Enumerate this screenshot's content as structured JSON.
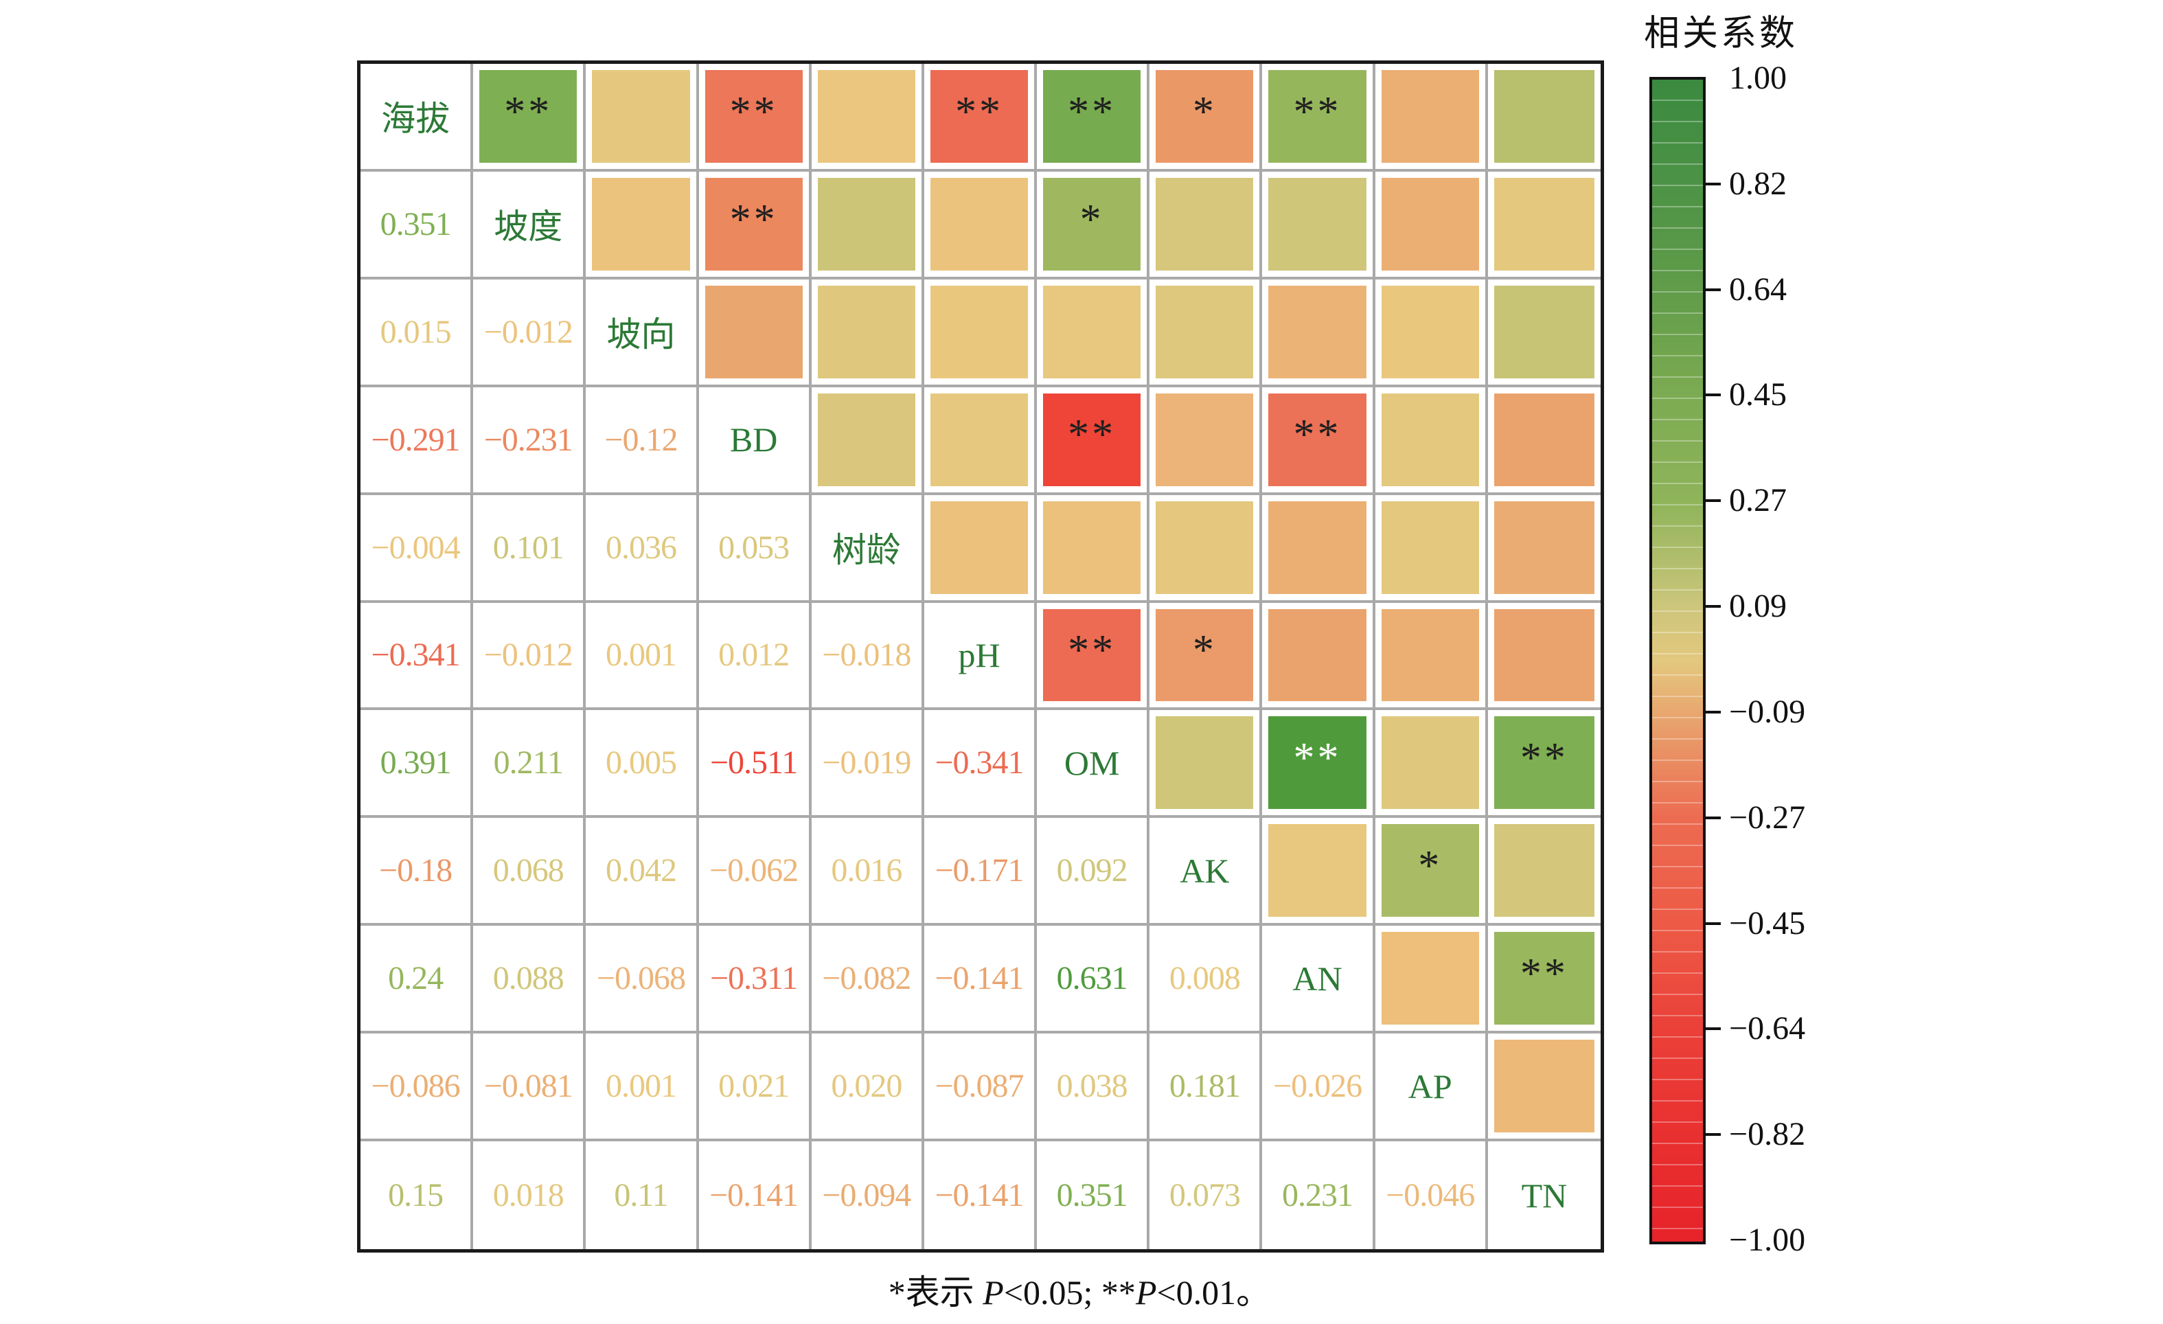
{
  "colorbar": {
    "title": "相关系数",
    "ticks": [
      "1.00",
      "0.82",
      "0.64",
      "0.45",
      "0.27",
      "0.09",
      "−0.09",
      "−0.27",
      "−0.45",
      "−0.64",
      "−0.82",
      "−1.00"
    ]
  },
  "matrix": {
    "variables": [
      "海拔",
      "坡度",
      "坡向",
      "BD",
      "树龄",
      "pH",
      "OM",
      "AK",
      "AN",
      "AP",
      "TN"
    ],
    "lower_display": [
      [],
      [
        "0.351"
      ],
      [
        "0.015",
        "−0.012"
      ],
      [
        "−0.291",
        "−0.231",
        "−0.12"
      ],
      [
        "−0.004",
        "0.101",
        "0.036",
        "0.053"
      ],
      [
        "−0.341",
        "−0.012",
        "0.001",
        "0.012",
        "−0.018"
      ],
      [
        "0.391",
        "0.211",
        "0.005",
        "−0.511",
        "−0.019",
        "−0.341"
      ],
      [
        "−0.18",
        "0.068",
        "0.042",
        "−0.062",
        "0.016",
        "−0.171",
        "0.092"
      ],
      [
        "0.24",
        "0.088",
        "−0.068",
        "−0.311",
        "−0.082",
        "−0.141",
        "0.631",
        "0.008"
      ],
      [
        "−0.086",
        "−0.081",
        "0.001",
        "0.021",
        "0.020",
        "−0.087",
        "0.038",
        "0.181",
        "−0.026"
      ],
      [
        "0.15",
        "0.018",
        "0.11",
        "−0.141",
        "−0.094",
        "−0.141",
        "0.351",
        "0.073",
        "0.231",
        "−0.046"
      ]
    ],
    "significance": {
      "0-1": "**",
      "0-3": "**",
      "0-5": "**",
      "0-6": "**",
      "0-7": "*",
      "0-8": "**",
      "1-3": "**",
      "1-6": "*",
      "3-6": "**",
      "3-8": "**",
      "5-6": "**",
      "5-7": "*",
      "6-8": "**",
      "6-10": "**",
      "7-9": "*",
      "8-10": "**"
    }
  },
  "caption": {
    "part1": "*表示 ",
    "p1": "P",
    "part2": "<0.05; **",
    "p2": "P",
    "part3": "<0.01。"
  },
  "colors": {
    "label_green": "#2c7936",
    "grid_line": "#a9a9a9",
    "outer_border": "#1a1a1a",
    "star_dark": "#1f1f1f",
    "star_light": "#ffffff",
    "cmap_stops": [
      [
        -1.0,
        229,
        33,
        42
      ],
      [
        -0.82,
        233,
        47,
        47
      ],
      [
        -0.64,
        234,
        64,
        55
      ],
      [
        -0.52,
        238,
        67,
        55
      ],
      [
        -0.4,
        237,
        95,
        72
      ],
      [
        -0.31,
        236,
        114,
        87
      ],
      [
        -0.23,
        236,
        136,
        94
      ],
      [
        -0.155,
        235,
        160,
        108
      ],
      [
        -0.1,
        234,
        170,
        113
      ],
      [
        -0.06,
        236,
        181,
        120
      ],
      [
        -0.03,
        237,
        190,
        123
      ],
      [
        -0.012,
        236,
        195,
        125
      ],
      [
        0.0,
        233,
        200,
        126
      ],
      [
        0.03,
        225,
        200,
        126
      ],
      [
        0.06,
        216,
        199,
        125
      ],
      [
        0.095,
        206,
        198,
        121
      ],
      [
        0.13,
        193,
        193,
        113
      ],
      [
        0.165,
        177,
        189,
        106
      ],
      [
        0.2,
        162,
        185,
        98
      ],
      [
        0.24,
        150,
        182,
        92
      ],
      [
        0.3,
        136,
        177,
        86
      ],
      [
        0.36,
        125,
        175,
        82
      ],
      [
        0.42,
        113,
        167,
        76
      ],
      [
        0.55,
        90,
        157,
        64
      ],
      [
        0.64,
        78,
        155,
        60
      ],
      [
        0.8,
        60,
        141,
        58
      ],
      [
        1.0,
        44,
        120,
        49
      ]
    ]
  },
  "chart_data": {
    "type": "heatmap",
    "title": "相关系数",
    "variables": [
      "海拔",
      "坡度",
      "坡向",
      "BD",
      "树龄",
      "pH",
      "OM",
      "AK",
      "AN",
      "AP",
      "TN"
    ],
    "lower_triangle": [
      [],
      [
        0.351
      ],
      [
        0.015,
        -0.012
      ],
      [
        -0.291,
        -0.231,
        -0.12
      ],
      [
        -0.004,
        0.101,
        0.036,
        0.053
      ],
      [
        -0.341,
        -0.012,
        0.001,
        0.012,
        -0.018
      ],
      [
        0.391,
        0.211,
        0.005,
        -0.511,
        -0.019,
        -0.341
      ],
      [
        -0.18,
        0.068,
        0.042,
        -0.062,
        0.016,
        -0.171,
        0.092
      ],
      [
        0.24,
        0.088,
        -0.068,
        -0.311,
        -0.082,
        -0.141,
        0.631,
        0.008
      ],
      [
        -0.086,
        -0.081,
        0.001,
        0.021,
        0.02,
        -0.087,
        0.038,
        0.181,
        -0.026
      ],
      [
        0.15,
        0.018,
        0.11,
        -0.141,
        -0.094,
        -0.141,
        0.351,
        0.073,
        0.231,
        -0.046
      ]
    ],
    "significance_pairs": {
      "海拔-坡度": "**",
      "海拔-BD": "**",
      "海拔-pH": "**",
      "海拔-OM": "**",
      "海拔-AK": "*",
      "海拔-AN": "**",
      "坡度-BD": "**",
      "坡度-OM": "*",
      "BD-OM": "**",
      "BD-AN": "**",
      "pH-OM": "**",
      "pH-AK": "*",
      "OM-AN": "**",
      "OM-TN": "**",
      "AK-AP": "*",
      "AN-TN": "**"
    },
    "layout": "lower triangle = correlation values, diagonal = variable names, upper triangle = colored squares with significance stars",
    "colorbar_range": [
      -1,
      1
    ],
    "colorbar_ticks": [
      1.0,
      0.82,
      0.64,
      0.45,
      0.27,
      0.09,
      -0.09,
      -0.27,
      -0.45,
      -0.64,
      -0.82,
      -1.0
    ],
    "note": "*表示 P<0.05; **P<0.01。"
  }
}
